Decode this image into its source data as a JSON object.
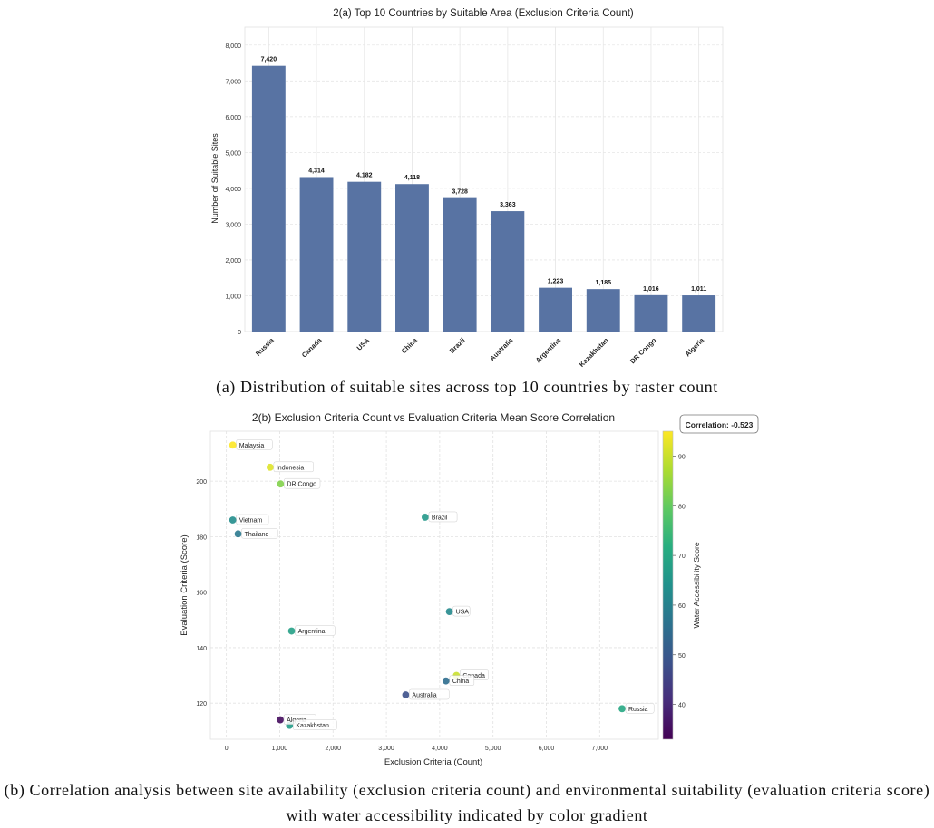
{
  "chart_data": [
    {
      "type": "bar",
      "title": "2(a) Top 10 Countries by Suitable Area (Exclusion Criteria Count)",
      "xlabel": "",
      "ylabel": "Number of Suitable Sites",
      "ylim": [
        0,
        8500
      ],
      "yticks": [
        0,
        1000,
        2000,
        3000,
        4000,
        5000,
        6000,
        7000,
        8000
      ],
      "ytick_labels": [
        "0",
        "1,000",
        "2,000",
        "3,000",
        "4,000",
        "5,000",
        "6,000",
        "7,000",
        "8,000"
      ],
      "categories": [
        "Russia",
        "Canada",
        "USA",
        "China",
        "Brazil",
        "Australia",
        "Argentina",
        "Kazakhstan",
        "DR Congo",
        "Algeria"
      ],
      "values": [
        7420,
        4314,
        4182,
        4118,
        3728,
        3363,
        1223,
        1185,
        1016,
        1011
      ],
      "value_labels": [
        "7,420",
        "4,314",
        "4,182",
        "4,118",
        "3,728",
        "3,363",
        "1,223",
        "1,185",
        "1,016",
        "1,011"
      ],
      "bar_color": "#5873a3",
      "grid": true
    },
    {
      "type": "scatter",
      "title": "2(b) Exclusion Criteria Count vs Evaluation Criteria Mean Score Correlation",
      "xlabel": "Exclusion Criteria (Count)",
      "ylabel": "Evaluation Criteria (Score)",
      "xlim": [
        -300,
        8100
      ],
      "ylim": [
        107,
        218
      ],
      "xticks": [
        0,
        1000,
        2000,
        3000,
        4000,
        5000,
        6000,
        7000
      ],
      "xtick_labels": [
        "0",
        "1,000",
        "2,000",
        "3,000",
        "4,000",
        "5,000",
        "6,000",
        "7,000"
      ],
      "yticks": [
        120,
        140,
        160,
        180,
        200
      ],
      "ytick_labels": [
        "120",
        "140",
        "160",
        "180",
        "200"
      ],
      "colorbar_label": "Water Accessibility Score",
      "colorbar_range": [
        33,
        95
      ],
      "colorbar_ticks": [
        "40",
        "50",
        "60",
        "70",
        "80",
        "90"
      ],
      "colorbar_tick_values": [
        40,
        50,
        60,
        70,
        80,
        90
      ],
      "correlation_text": "Correlation: -0.523",
      "grid": true,
      "points": [
        {
          "label": "Malaysia",
          "x": 120,
          "y": 213,
          "water": 95
        },
        {
          "label": "Indonesia",
          "x": 820,
          "y": 205,
          "water": 92
        },
        {
          "label": "DR Congo",
          "x": 1016,
          "y": 199,
          "water": 83
        },
        {
          "label": "Vietnam",
          "x": 120,
          "y": 186,
          "water": 63
        },
        {
          "label": "Thailand",
          "x": 220,
          "y": 181,
          "water": 58
        },
        {
          "label": "Brazil",
          "x": 3728,
          "y": 187,
          "water": 66
        },
        {
          "label": "USA",
          "x": 4182,
          "y": 153,
          "water": 62
        },
        {
          "label": "Argentina",
          "x": 1223,
          "y": 146,
          "water": 68
        },
        {
          "label": "Canada",
          "x": 4314,
          "y": 130,
          "water": 90
        },
        {
          "label": "China",
          "x": 4118,
          "y": 128,
          "water": 55
        },
        {
          "label": "Australia",
          "x": 3363,
          "y": 123,
          "water": 48
        },
        {
          "label": "Russia",
          "x": 7420,
          "y": 118,
          "water": 70
        },
        {
          "label": "Algeria",
          "x": 1011,
          "y": 114,
          "water": 35
        },
        {
          "label": "Kazakhstan",
          "x": 1185,
          "y": 112,
          "water": 67
        }
      ]
    }
  ],
  "captions": {
    "a": "(a) Distribution of suitable sites across top 10 countries by raster count",
    "b_line1": "(b) Correlation analysis between site availability (exclusion criteria count) and environmental suitability (evaluation criteria score)",
    "b_line2": "with water accessibility indicated by color gradient"
  }
}
